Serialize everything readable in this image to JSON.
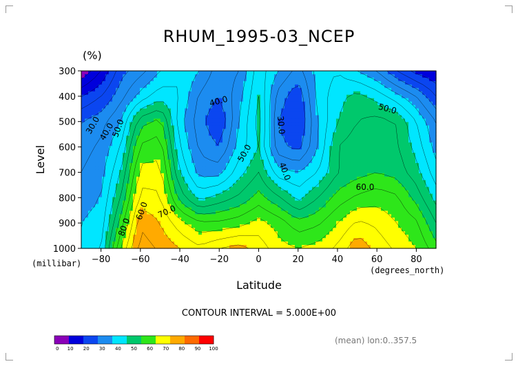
{
  "chart_data": {
    "type": "heatmap",
    "title": "RHUM_1995-03_NCEP",
    "units": "(%)",
    "xlabel": "Latitude",
    "ylabel": "Level",
    "x_unit": "(degrees_north)",
    "y_unit": "(millibar)",
    "xlim": [
      -90,
      90
    ],
    "ylim": [
      1000,
      300
    ],
    "x_ticks": [
      -80,
      -60,
      -40,
      -20,
      0,
      20,
      40,
      60,
      80
    ],
    "y_ticks": [
      300,
      400,
      500,
      600,
      700,
      800,
      900,
      1000
    ],
    "contour_interval_text": "CONTOUR INTERVAL = 5.000E+00",
    "info_text": "(mean) lon:0..357.5",
    "colorbar": {
      "levels": [
        0,
        10,
        20,
        30,
        40,
        50,
        60,
        70,
        80,
        90,
        100
      ],
      "colors": [
        "#8a00b8",
        "#0000dc",
        "#0b46f0",
        "#1c8cf0",
        "#00e6ff",
        "#00c86c",
        "#2ee61a",
        "#ffff00",
        "#ffaa00",
        "#ff6a00",
        "#ff0000"
      ]
    },
    "contour_labels": [
      "30.0",
      "40.0",
      "50.0",
      "60.0",
      "70.0",
      "80.0",
      "40.0",
      "50.0",
      "30.0",
      "40.0",
      "50.0",
      "60.0"
    ],
    "lat": [
      -90,
      -80,
      -70,
      -60,
      -50,
      -40,
      -30,
      -20,
      -10,
      0,
      10,
      20,
      30,
      40,
      50,
      60,
      70,
      80,
      90
    ],
    "levels": [
      300,
      400,
      500,
      600,
      700,
      800,
      900,
      1000
    ],
    "values": [
      [
        5,
        15,
        28,
        33,
        40,
        45,
        40,
        32,
        35,
        48,
        40,
        33,
        42,
        45,
        40,
        35,
        25,
        18,
        15
      ],
      [
        20,
        25,
        33,
        42,
        48,
        45,
        34,
        30,
        38,
        50,
        33,
        26,
        42,
        48,
        52,
        48,
        42,
        35,
        25
      ],
      [
        30,
        33,
        40,
        58,
        62,
        42,
        32,
        25,
        40,
        52,
        30,
        24,
        40,
        50,
        55,
        57,
        55,
        45,
        35
      ],
      [
        33,
        36,
        45,
        66,
        68,
        45,
        34,
        30,
        42,
        50,
        32,
        28,
        40,
        55,
        58,
        58,
        56,
        48,
        38
      ],
      [
        35,
        38,
        50,
        72,
        72,
        50,
        38,
        38,
        48,
        55,
        42,
        40,
        45,
        55,
        58,
        60,
        58,
        52,
        42
      ],
      [
        38,
        40,
        55,
        77,
        76,
        58,
        48,
        52,
        56,
        62,
        56,
        48,
        55,
        62,
        66,
        68,
        66,
        58,
        48
      ],
      [
        40,
        42,
        62,
        84,
        80,
        72,
        66,
        66,
        68,
        72,
        68,
        62,
        64,
        70,
        76,
        74,
        70,
        66,
        55
      ],
      [
        40,
        45,
        70,
        88,
        84,
        80,
        76,
        80,
        82,
        78,
        72,
        70,
        72,
        76,
        84,
        78,
        74,
        70,
        62
      ]
    ]
  }
}
